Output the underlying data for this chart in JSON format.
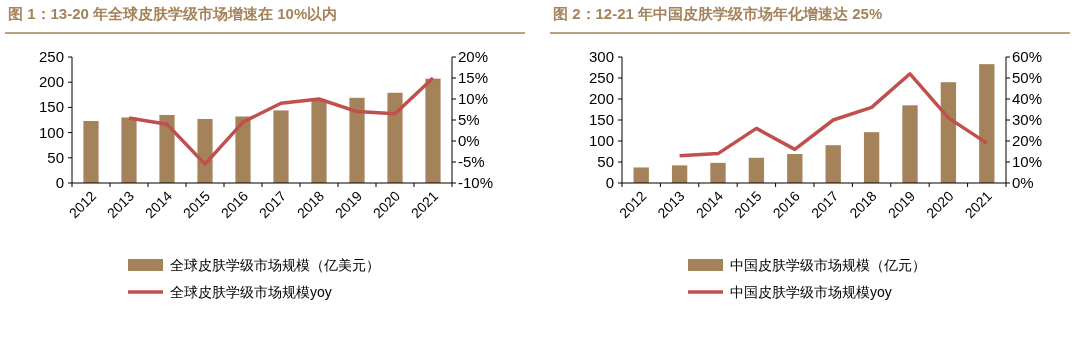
{
  "chart_data": [
    {
      "type": "bar",
      "title": "图 1：13-20 年全球皮肤学级市场增速在 10%以内",
      "categories": [
        "2012",
        "2013",
        "2014",
        "2015",
        "2016",
        "2017",
        "2018",
        "2019",
        "2020",
        "2021"
      ],
      "series": [
        {
          "name": "全球皮肤学级市场规模（亿美元）",
          "color": "#a5835a",
          "values": [
            123,
            130,
            135,
            127,
            132,
            144,
            163,
            169,
            179,
            207
          ]
        },
        {
          "name": "全球皮肤学级市场规模yoy",
          "type": "line",
          "axis": "y2",
          "color": "#c0504d",
          "values": [
            null,
            5.5,
            4,
            -5.5,
            4.5,
            9,
            10,
            7,
            6.5,
            15
          ]
        }
      ],
      "ylim": [
        0,
        250
      ],
      "yticks": [
        0,
        50,
        100,
        150,
        200,
        250
      ],
      "y2lim": [
        -10,
        20
      ],
      "y2ticks": [
        {
          "value": -10,
          "label": "-10%"
        },
        {
          "value": -5,
          "label": "-5%"
        },
        {
          "value": 0,
          "label": "0%"
        },
        {
          "value": 5,
          "label": "5%"
        },
        {
          "value": 10,
          "label": "10%"
        },
        {
          "value": 15,
          "label": "15%"
        },
        {
          "value": 20,
          "label": "20%"
        }
      ],
      "legend": "bottom",
      "grid": false,
      "marker": "none",
      "line_style": "solid"
    },
    {
      "type": "bar",
      "title": "图 2：12-21 年中国皮肤学级市场年化增速达 25%",
      "categories": [
        "2012",
        "2013",
        "2014",
        "2015",
        "2016",
        "2017",
        "2018",
        "2019",
        "2020",
        "2021"
      ],
      "series": [
        {
          "name": "中国皮肤学级市场规模（亿元）",
          "color": "#a5835a",
          "values": [
            37,
            42,
            48,
            60,
            69,
            90,
            121,
            185,
            240,
            283
          ]
        },
        {
          "name": "中国皮肤学级市场规模yoy",
          "type": "line",
          "axis": "y2",
          "color": "#c0504d",
          "values": [
            null,
            13,
            14,
            26,
            16,
            30,
            36,
            52,
            31,
            19
          ]
        }
      ],
      "ylim": [
        0,
        300
      ],
      "yticks": [
        0,
        50,
        100,
        150,
        200,
        250,
        300
      ],
      "y2lim": [
        0,
        60
      ],
      "y2ticks": [
        {
          "value": 0,
          "label": "0%"
        },
        {
          "value": 10,
          "label": "10%"
        },
        {
          "value": 20,
          "label": "20%"
        },
        {
          "value": 30,
          "label": "30%"
        },
        {
          "value": 40,
          "label": "40%"
        },
        {
          "value": 50,
          "label": "50%"
        },
        {
          "value": 60,
          "label": "60%"
        }
      ],
      "legend": "bottom",
      "grid": false,
      "marker": "none",
      "line_style": "solid"
    }
  ]
}
